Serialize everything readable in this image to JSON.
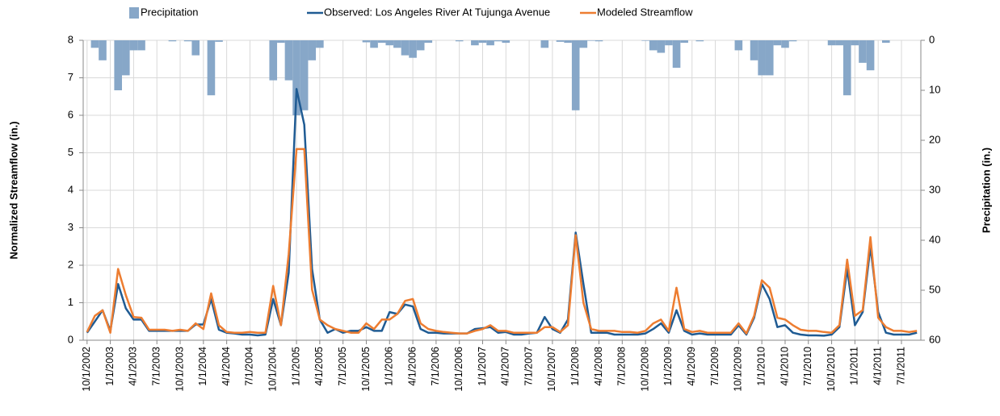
{
  "chart_data": {
    "type": "combo",
    "y_label": "Normalized Streamflow (in.)",
    "y2_label": "Precipitation (in.)",
    "categories": [
      "10/1/2002",
      null,
      null,
      "1/1/2003",
      null,
      null,
      "4/1/2003",
      null,
      null,
      "7/1/2003",
      null,
      null,
      "10/1/2003",
      null,
      null,
      "1/1/2004",
      null,
      null,
      "4/1/2004",
      null,
      null,
      "7/1/2004",
      null,
      null,
      "10/1/2004",
      null,
      null,
      "1/1/2005",
      null,
      null,
      "4/1/2005",
      null,
      null,
      "7/1/2005",
      null,
      null,
      "10/1/2005",
      null,
      null,
      "1/1/2006",
      null,
      null,
      "4/1/2006",
      null,
      null,
      "7/1/2006",
      null,
      null,
      "10/1/2006",
      null,
      null,
      "1/1/2007",
      null,
      null,
      "4/1/2007",
      null,
      null,
      "7/1/2007",
      null,
      null,
      "10/1/2007",
      null,
      null,
      "1/1/2008",
      null,
      null,
      "4/1/2008",
      null,
      null,
      "7/1/2008",
      null,
      null,
      "10/1/2008",
      null,
      null,
      "1/1/2009",
      null,
      null,
      "4/1/2009",
      null,
      null,
      "7/1/2009",
      null,
      null,
      "10/1/2009",
      null,
      null,
      "1/1/2010",
      null,
      null,
      "4/1/2010",
      null,
      null,
      "7/1/2010",
      null,
      null,
      "10/1/2010",
      null,
      null,
      "1/1/2011",
      null,
      null,
      "4/1/2011",
      null,
      null,
      "7/1/2011",
      null,
      null
    ],
    "series": [
      {
        "name": "Precipitation",
        "type": "bar",
        "axis": "y2",
        "color": "#87a7c8",
        "values": [
          0,
          1.5,
          4,
          0,
          10,
          7,
          2,
          2,
          0,
          0,
          0,
          0.2,
          0,
          0.2,
          3,
          0,
          11,
          0.3,
          0,
          0,
          0,
          0,
          0,
          0,
          8,
          0.5,
          8,
          15,
          14,
          4,
          1.5,
          0,
          0,
          0,
          0,
          0,
          0.4,
          1.5,
          0.5,
          1,
          1.5,
          3,
          3.5,
          2,
          0.5,
          0,
          0,
          0,
          0.2,
          0,
          1,
          0.5,
          1,
          0.2,
          0.5,
          0,
          0,
          0,
          0,
          1.5,
          0,
          0.3,
          0.5,
          14,
          1.5,
          0.1,
          0.2,
          0,
          0,
          0,
          0,
          0,
          0.1,
          2,
          2.5,
          1,
          5.5,
          0.5,
          0,
          0.2,
          0,
          0,
          0,
          0,
          2,
          0,
          4,
          7,
          7,
          1,
          1.5,
          0.2,
          0,
          0,
          0,
          0,
          1,
          1,
          11,
          1,
          4.5,
          6,
          0,
          0.5,
          0,
          0,
          0,
          0
        ]
      },
      {
        "name": "Observed: Los Angeles River At Tujunga Avenue",
        "type": "line",
        "color": "#1f5b93",
        "values": [
          0.2,
          0.5,
          0.8,
          0.25,
          1.5,
          0.85,
          0.55,
          0.55,
          0.25,
          0.25,
          0.25,
          0.25,
          0.25,
          0.25,
          0.42,
          0.42,
          1.1,
          0.28,
          0.2,
          0.18,
          0.15,
          0.15,
          0.13,
          0.15,
          1.1,
          0.4,
          1.8,
          6.7,
          5.75,
          1.9,
          0.55,
          0.2,
          0.3,
          0.2,
          0.25,
          0.25,
          0.35,
          0.25,
          0.25,
          0.75,
          0.7,
          0.95,
          0.9,
          0.3,
          0.2,
          0.2,
          0.18,
          0.18,
          0.18,
          0.18,
          0.3,
          0.32,
          0.35,
          0.2,
          0.22,
          0.15,
          0.15,
          0.18,
          0.2,
          0.62,
          0.3,
          0.2,
          0.55,
          2.87,
          1.5,
          0.2,
          0.2,
          0.2,
          0.15,
          0.15,
          0.15,
          0.15,
          0.18,
          0.3,
          0.45,
          0.2,
          0.8,
          0.25,
          0.15,
          0.18,
          0.15,
          0.15,
          0.15,
          0.15,
          0.4,
          0.15,
          0.6,
          1.5,
          1.1,
          0.35,
          0.4,
          0.2,
          0.15,
          0.13,
          0.13,
          0.12,
          0.15,
          0.35,
          1.9,
          0.4,
          0.75,
          2.5,
          0.75,
          0.2,
          0.15,
          0.15,
          0.15,
          0.2
        ]
      },
      {
        "name": "Modeled Streamflow",
        "type": "line",
        "color": "#ed7d31",
        "values": [
          0.22,
          0.65,
          0.8,
          0.2,
          1.9,
          1.2,
          0.62,
          0.6,
          0.28,
          0.28,
          0.28,
          0.25,
          0.28,
          0.25,
          0.45,
          0.3,
          1.25,
          0.4,
          0.22,
          0.2,
          0.2,
          0.22,
          0.2,
          0.2,
          1.45,
          0.4,
          2.3,
          5.1,
          5.1,
          1.35,
          0.55,
          0.4,
          0.3,
          0.25,
          0.2,
          0.2,
          0.45,
          0.3,
          0.55,
          0.55,
          0.7,
          1.05,
          1.1,
          0.45,
          0.3,
          0.25,
          0.22,
          0.2,
          0.18,
          0.18,
          0.25,
          0.3,
          0.4,
          0.25,
          0.25,
          0.2,
          0.2,
          0.2,
          0.2,
          0.35,
          0.35,
          0.22,
          0.4,
          2.8,
          1.0,
          0.3,
          0.25,
          0.25,
          0.25,
          0.22,
          0.22,
          0.2,
          0.25,
          0.45,
          0.55,
          0.25,
          1.4,
          0.3,
          0.22,
          0.25,
          0.2,
          0.2,
          0.2,
          0.2,
          0.45,
          0.18,
          0.65,
          1.6,
          1.4,
          0.6,
          0.55,
          0.4,
          0.28,
          0.25,
          0.25,
          0.22,
          0.2,
          0.4,
          2.15,
          0.65,
          0.8,
          2.75,
          0.6,
          0.35,
          0.25,
          0.25,
          0.22,
          0.25
        ]
      }
    ],
    "ylim": [
      0,
      8
    ],
    "yticks": [
      0,
      1,
      2,
      3,
      4,
      5,
      6,
      7,
      8
    ],
    "y2lim": [
      0,
      60
    ],
    "y2ticks": [
      0,
      10,
      20,
      30,
      40,
      50,
      60
    ],
    "y2_reversed": true,
    "grid": true,
    "legend": "top"
  }
}
